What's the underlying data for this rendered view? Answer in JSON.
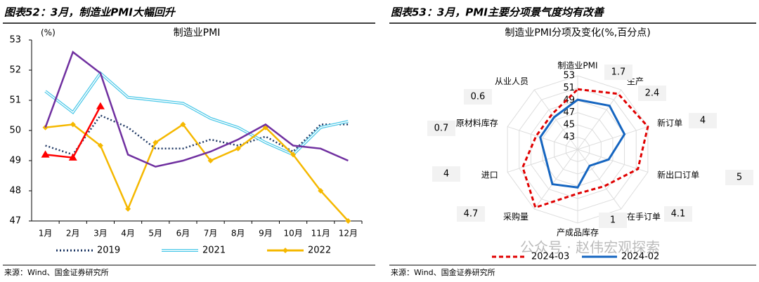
{
  "header_left": "图表52：3月，制造业PMI大幅回升",
  "header_right": "图表53：3月，PMI主要分项景气度均有改善",
  "source_left": "来源：Wind、国金证券研究所",
  "source_right": "来源：Wind、国金证券研究所",
  "watermark": "公众号 · 赵伟宏观探索",
  "chart_data": [
    {
      "type": "line",
      "title": "制造业PMI",
      "y_label": "(%)",
      "categories": [
        "1月",
        "2月",
        "3月",
        "4月",
        "5月",
        "6月",
        "7月",
        "8月",
        "9月",
        "10月",
        "11月",
        "12月"
      ],
      "ylim": [
        47,
        53
      ],
      "yticks": [
        47,
        48,
        49,
        50,
        51,
        52,
        53
      ],
      "series": [
        {
          "name": "2019",
          "color": "#1f3864",
          "style": "dotted",
          "values": [
            49.5,
            49.2,
            50.5,
            50.1,
            49.4,
            49.4,
            49.7,
            49.5,
            49.8,
            49.3,
            50.2,
            50.2
          ]
        },
        {
          "name": "2021",
          "color": "#4bc8e8",
          "style": "double",
          "values": [
            51.3,
            50.6,
            51.9,
            51.1,
            51.0,
            50.9,
            50.4,
            50.1,
            49.6,
            49.2,
            50.1,
            50.3
          ]
        },
        {
          "name": "2022",
          "color": "#f5b800",
          "style": "solid",
          "marker": "diamond",
          "values": [
            50.1,
            50.2,
            49.5,
            47.4,
            49.6,
            50.2,
            49.0,
            49.4,
            50.1,
            49.2,
            48.0,
            47.0
          ]
        },
        {
          "color": "#7030a0",
          "style": "solid",
          "values": [
            50.1,
            52.6,
            51.9,
            49.2,
            48.8,
            49.0,
            49.3,
            49.7,
            50.2,
            49.5,
            49.4,
            49.0
          ]
        },
        {
          "color": "#ff0000",
          "style": "solid",
          "marker": "triangle",
          "values": [
            49.2,
            49.1,
            50.8,
            null,
            null,
            null,
            null,
            null,
            null,
            null,
            null,
            null
          ]
        }
      ]
    },
    {
      "type": "radar",
      "title": "制造业PMI分项及变化(%,百分点)",
      "categories": [
        "制造业PMI",
        "生产",
        "新订单",
        "新出口订单",
        "在手订单",
        "产成品库存",
        "采购量",
        "进口",
        "原材料库存",
        "从业人员"
      ],
      "rlim": [
        41,
        53
      ],
      "rticks": [
        43,
        45,
        47,
        49,
        51,
        53
      ],
      "changes": [
        1.7,
        2.4,
        4.0,
        5.0,
        4.1,
        1.0,
        4.7,
        4.0,
        0.7,
        0.6
      ],
      "series": [
        {
          "name": "2024-03",
          "color": "#e00000",
          "style": "dashed",
          "values": [
            50.8,
            52.2,
            53.0,
            51.3,
            48.4,
            48.2,
            52.7,
            50.4,
            48.1,
            48.1
          ]
        },
        {
          "name": "2024-02",
          "color": "#1565c0",
          "style": "solid",
          "values": [
            49.1,
            49.8,
            49.0,
            46.3,
            44.3,
            47.2,
            48.0,
            46.4,
            47.4,
            47.5
          ]
        }
      ]
    }
  ]
}
